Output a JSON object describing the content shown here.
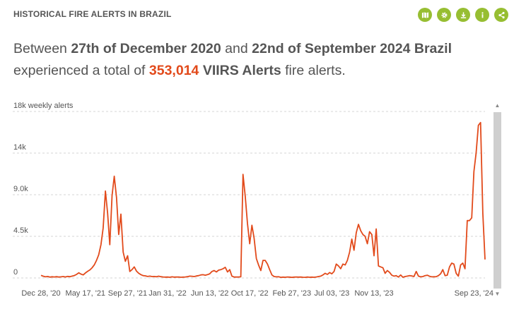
{
  "widget": {
    "title": "HISTORICAL FIRE ALERTS IN BRAZIL",
    "tools": [
      {
        "name": "map-icon"
      },
      {
        "name": "settings-icon"
      },
      {
        "name": "download-icon"
      },
      {
        "name": "info-icon"
      },
      {
        "name": "share-icon"
      }
    ],
    "accent_color": "#97be32"
  },
  "summary": {
    "part1": "Between ",
    "start_date": "27th of December 2020",
    "part2": " and ",
    "end_date": "22nd of September 2024",
    "space": " ",
    "location": "Brazil",
    "part3": " experienced a total of ",
    "total": "353,014",
    "space2": " ",
    "dataset": "VIIRS Alerts",
    "part4": " fire alerts.",
    "highlight_color": "#e24a1b"
  },
  "scrollbar": {
    "up": "▲",
    "down": "▼"
  },
  "chart_data": {
    "type": "line",
    "ylabel": "weekly alerts",
    "ylim": [
      0,
      18000
    ],
    "y_ticks": [
      {
        "value": 0,
        "label": "0"
      },
      {
        "value": 4500,
        "label": "4.5k"
      },
      {
        "value": 9000,
        "label": "9.0k"
      },
      {
        "value": 13500,
        "label": "14k"
      },
      {
        "value": 18000,
        "label": "18k"
      }
    ],
    "x_ticks": [
      "Dec 28, '20",
      "May 17, '21",
      "Sep 27, '21",
      "Jan 31, '22",
      "Jun 13, '22",
      "Oct 17, '22",
      "Feb 27, '23",
      "Jul 03, '23",
      "Nov 13, '23",
      "Sep 23, '24"
    ],
    "x_tick_weeks": [
      0,
      20,
      39,
      57,
      76,
      94,
      113,
      131,
      150,
      195
    ],
    "grid": true,
    "line_color": "#e24a1b",
    "series": [
      {
        "values": [
          280,
          190,
          120,
          160,
          90,
          130,
          110,
          140,
          100,
          120,
          150,
          110,
          170,
          140,
          200,
          260,
          380,
          560,
          420,
          330,
          540,
          720,
          870,
          1100,
          1420,
          1900,
          2500,
          3600,
          5400,
          9400,
          7000,
          3600,
          8900,
          11000,
          8700,
          4700,
          6900,
          2800,
          1800,
          2400,
          700,
          900,
          1200,
          750,
          500,
          360,
          250,
          230,
          160,
          200,
          150,
          160,
          130,
          190,
          140,
          110,
          90,
          100,
          80,
          120,
          90,
          100,
          110,
          80,
          90,
          110,
          140,
          200,
          180,
          150,
          210,
          250,
          330,
          350,
          300,
          360,
          450,
          700,
          800,
          650,
          850,
          900,
          1000,
          1150,
          650,
          900,
          200,
          100,
          100,
          110,
          120,
          11200,
          8800,
          5900,
          3700,
          5700,
          4300,
          2100,
          1400,
          800,
          1900,
          1900,
          1500,
          900,
          330,
          150,
          120,
          130,
          70,
          90,
          80,
          110,
          90,
          60,
          90,
          110,
          90,
          100,
          80,
          70,
          100,
          80,
          90,
          80,
          110,
          150,
          200,
          330,
          500,
          380,
          590,
          450,
          700,
          1500,
          1300,
          1000,
          1500,
          1400,
          1900,
          2800,
          4200,
          3000,
          4900,
          5800,
          5100,
          4700,
          4500,
          3700,
          5000,
          4700,
          2400,
          5300,
          1300,
          1200,
          1100,
          500,
          800,
          600,
          300,
          200,
          250,
          100,
          320,
          80,
          150,
          200,
          250,
          220,
          150,
          700,
          200,
          120,
          150,
          250,
          300,
          180,
          120,
          130,
          140,
          250,
          450,
          900,
          250,
          300,
          1200,
          1600,
          1500,
          500,
          200,
          1400,
          1600,
          1000,
          6200,
          6200,
          6500,
          11500,
          13500,
          16500,
          16800,
          7000,
          2000
        ]
      }
    ]
  }
}
